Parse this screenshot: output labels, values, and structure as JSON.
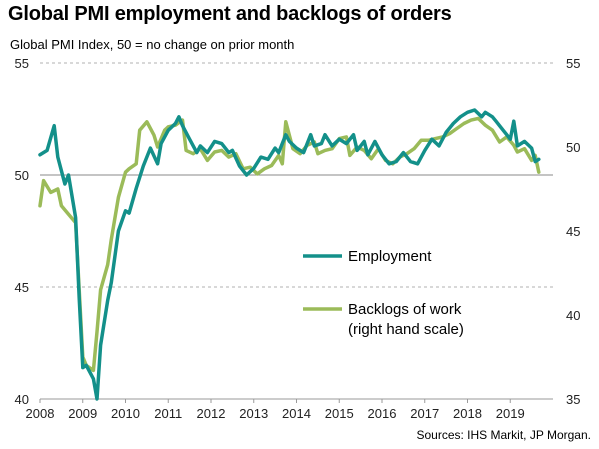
{
  "title": "Global PMI employment and backlogs of orders",
  "subtitle": "Global  PMI Index, 50 = no change on prior month",
  "source": "Sources: IHS Markit, JP Morgan.",
  "chart_data": {
    "type": "line",
    "x_ticks": [
      "2008",
      "2009",
      "2010",
      "2011",
      "2012",
      "2013",
      "2014",
      "2015",
      "2016",
      "2017",
      "2018",
      "2019"
    ],
    "xlim": [
      "2008-01",
      "2019-12"
    ],
    "y_left": {
      "range": [
        40,
        55
      ],
      "ticks": [
        "40",
        "45",
        "50",
        "55"
      ]
    },
    "y_right": {
      "range": [
        35,
        55
      ],
      "ticks": [
        "35",
        "40",
        "45",
        "50",
        "55"
      ]
    },
    "grid": "dashed horizontal",
    "series": [
      {
        "name": "Employment",
        "axis": "left",
        "color": "#13908a",
        "points": [
          [
            "2008-01",
            50.9
          ],
          [
            "2008-03",
            51.1
          ],
          [
            "2008-05",
            52.2
          ],
          [
            "2008-06",
            50.8
          ],
          [
            "2008-08",
            49.6
          ],
          [
            "2008-09",
            50.0
          ],
          [
            "2008-11",
            48.1
          ],
          [
            "2008-12",
            44.5
          ],
          [
            "2009-01",
            41.4
          ],
          [
            "2009-02",
            41.5
          ],
          [
            "2009-04",
            40.9
          ],
          [
            "2009-05",
            40.0
          ],
          [
            "2009-06",
            42.4
          ],
          [
            "2009-08",
            44.4
          ],
          [
            "2009-09",
            45.2
          ],
          [
            "2009-11",
            47.5
          ],
          [
            "2010-01",
            48.4
          ],
          [
            "2010-02",
            48.3
          ],
          [
            "2010-04",
            49.4
          ],
          [
            "2010-06",
            50.4
          ],
          [
            "2010-08",
            51.2
          ],
          [
            "2010-10",
            50.5
          ],
          [
            "2010-11",
            51.4
          ],
          [
            "2011-01",
            52.0
          ],
          [
            "2011-03",
            52.3
          ],
          [
            "2011-04",
            52.6
          ],
          [
            "2011-05",
            52.2
          ],
          [
            "2011-07",
            51.6
          ],
          [
            "2011-09",
            51.0
          ],
          [
            "2011-10",
            51.3
          ],
          [
            "2011-12",
            51.0
          ],
          [
            "2012-02",
            51.5
          ],
          [
            "2012-04",
            51.4
          ],
          [
            "2012-06",
            51.0
          ],
          [
            "2012-07",
            51.1
          ],
          [
            "2012-09",
            50.4
          ],
          [
            "2012-11",
            50.0
          ],
          [
            "2013-01",
            50.3
          ],
          [
            "2013-03",
            50.8
          ],
          [
            "2013-05",
            50.7
          ],
          [
            "2013-07",
            51.2
          ],
          [
            "2013-08",
            51.0
          ],
          [
            "2013-10",
            51.8
          ],
          [
            "2013-11",
            51.5
          ],
          [
            "2014-01",
            51.2
          ],
          [
            "2014-03",
            51.0
          ],
          [
            "2014-05",
            51.8
          ],
          [
            "2014-06",
            51.3
          ],
          [
            "2014-08",
            51.4
          ],
          [
            "2014-09",
            51.8
          ],
          [
            "2014-11",
            51.3
          ],
          [
            "2015-01",
            51.6
          ],
          [
            "2015-03",
            51.4
          ],
          [
            "2015-05",
            51.8
          ],
          [
            "2015-06",
            51.1
          ],
          [
            "2015-08",
            51.5
          ],
          [
            "2015-09",
            50.9
          ],
          [
            "2015-11",
            51.5
          ],
          [
            "2016-01",
            50.9
          ],
          [
            "2016-03",
            50.5
          ],
          [
            "2016-05",
            50.6
          ],
          [
            "2016-07",
            51.0
          ],
          [
            "2016-09",
            50.6
          ],
          [
            "2016-11",
            50.5
          ],
          [
            "2017-01",
            51.1
          ],
          [
            "2017-03",
            51.6
          ],
          [
            "2017-05",
            51.3
          ],
          [
            "2017-07",
            51.9
          ],
          [
            "2017-09",
            52.3
          ],
          [
            "2017-11",
            52.6
          ],
          [
            "2018-01",
            52.8
          ],
          [
            "2018-03",
            52.9
          ],
          [
            "2018-05",
            52.6
          ],
          [
            "2018-06",
            52.8
          ],
          [
            "2018-08",
            52.6
          ],
          [
            "2018-09",
            52.4
          ],
          [
            "2018-11",
            52.0
          ],
          [
            "2019-01",
            51.6
          ],
          [
            "2019-02",
            52.4
          ],
          [
            "2019-03",
            51.3
          ],
          [
            "2019-05",
            51.5
          ],
          [
            "2019-07",
            51.2
          ],
          [
            "2019-08",
            50.6
          ],
          [
            "2019-09",
            50.7
          ]
        ]
      },
      {
        "name": "Backlogs of work\n(right hand scale)",
        "axis": "right",
        "color": "#9bbb59",
        "points": [
          [
            "2008-01",
            46.5
          ],
          [
            "2008-02",
            48.0
          ],
          [
            "2008-04",
            47.3
          ],
          [
            "2008-06",
            47.5
          ],
          [
            "2008-07",
            46.5
          ],
          [
            "2008-09",
            46.0
          ],
          [
            "2008-11",
            45.5
          ],
          [
            "2008-12",
            41.5
          ],
          [
            "2009-01",
            37.5
          ],
          [
            "2009-02",
            37.0
          ],
          [
            "2009-04",
            36.7
          ],
          [
            "2009-05",
            39.0
          ],
          [
            "2009-06",
            41.5
          ],
          [
            "2009-08",
            43.0
          ],
          [
            "2009-09",
            44.5
          ],
          [
            "2009-11",
            47.0
          ],
          [
            "2010-01",
            48.5
          ],
          [
            "2010-02",
            48.7
          ],
          [
            "2010-04",
            49.0
          ],
          [
            "2010-05",
            51.0
          ],
          [
            "2010-07",
            51.5
          ],
          [
            "2010-09",
            50.7
          ],
          [
            "2010-10",
            50.0
          ],
          [
            "2010-12",
            51.0
          ],
          [
            "2011-01",
            51.2
          ],
          [
            "2011-03",
            51.3
          ],
          [
            "2011-05",
            51.6
          ],
          [
            "2011-06",
            49.8
          ],
          [
            "2011-08",
            49.6
          ],
          [
            "2011-10",
            49.9
          ],
          [
            "2011-12",
            49.2
          ],
          [
            "2012-02",
            49.7
          ],
          [
            "2012-04",
            49.8
          ],
          [
            "2012-06",
            49.4
          ],
          [
            "2012-08",
            49.6
          ],
          [
            "2012-10",
            48.7
          ],
          [
            "2012-12",
            48.8
          ],
          [
            "2013-02",
            48.4
          ],
          [
            "2013-04",
            48.7
          ],
          [
            "2013-06",
            48.9
          ],
          [
            "2013-08",
            49.5
          ],
          [
            "2013-09",
            49.0
          ],
          [
            "2013-10",
            51.5
          ],
          [
            "2013-12",
            49.9
          ],
          [
            "2014-02",
            49.6
          ],
          [
            "2014-04",
            50.1
          ],
          [
            "2014-06",
            50.3
          ],
          [
            "2014-07",
            49.6
          ],
          [
            "2014-09",
            49.8
          ],
          [
            "2014-11",
            49.9
          ],
          [
            "2015-01",
            50.5
          ],
          [
            "2015-03",
            50.6
          ],
          [
            "2015-04",
            49.5
          ],
          [
            "2015-06",
            50.0
          ],
          [
            "2015-08",
            49.8
          ],
          [
            "2015-10",
            49.3
          ],
          [
            "2015-12",
            49.9
          ],
          [
            "2016-02",
            49.2
          ],
          [
            "2016-04",
            49.0
          ],
          [
            "2016-06",
            49.4
          ],
          [
            "2016-08",
            49.6
          ],
          [
            "2016-10",
            49.9
          ],
          [
            "2016-12",
            50.4
          ],
          [
            "2017-02",
            50.4
          ],
          [
            "2017-04",
            50.5
          ],
          [
            "2017-06",
            50.6
          ],
          [
            "2017-08",
            50.8
          ],
          [
            "2017-10",
            51.1
          ],
          [
            "2017-12",
            51.4
          ],
          [
            "2018-02",
            51.6
          ],
          [
            "2018-04",
            51.7
          ],
          [
            "2018-06",
            51.3
          ],
          [
            "2018-08",
            51.0
          ],
          [
            "2018-10",
            50.3
          ],
          [
            "2018-12",
            50.6
          ],
          [
            "2019-02",
            50.1
          ],
          [
            "2019-03",
            49.7
          ],
          [
            "2019-05",
            49.9
          ],
          [
            "2019-07",
            49.2
          ],
          [
            "2019-08",
            49.5
          ],
          [
            "2019-09",
            48.5
          ]
        ]
      }
    ]
  }
}
